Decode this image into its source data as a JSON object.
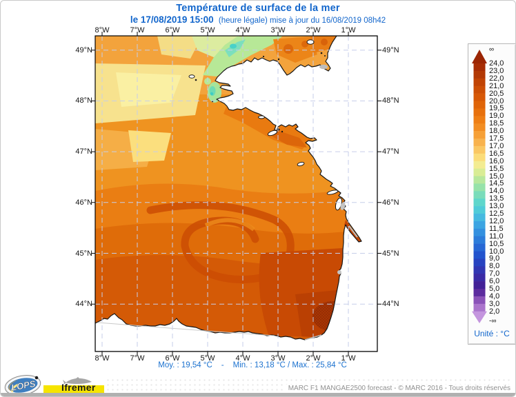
{
  "header": {
    "title": "Température de surface de la mer",
    "date_bold": "le 17/08/2019 15:00",
    "date_rest": "(heure légale) mise à jour du 16/08/2019 08h42"
  },
  "map": {
    "lon_labels": [
      "8°W",
      "7°W",
      "6°W",
      "5°W",
      "4°W",
      "3°W",
      "2°W",
      "1°W"
    ],
    "lat_labels": [
      "49°N",
      "48°N",
      "47°N",
      "46°N",
      "45°N",
      "44°N"
    ]
  },
  "scale": {
    "top_label": "∞",
    "bottom_label": "-∞",
    "unit": "Unité : °C",
    "boundaries": [
      "24,0",
      "23,0",
      "22,0",
      "21,0",
      "20,5",
      "20,0",
      "19,5",
      "19,0",
      "18,5",
      "18,0",
      "17,5",
      "17,0",
      "16,5",
      "16,0",
      "15,5",
      "15,0",
      "14,5",
      "14,0",
      "13,5",
      "13,0",
      "12,5",
      "12,0",
      "11,5",
      "11,0",
      "10,5",
      "10,0",
      "9,0",
      "8,0",
      "7,0",
      "6,0",
      "5,0",
      "4,0",
      "3,0",
      "2,0"
    ],
    "segment_colors": [
      "#9b2503",
      "#a72c04",
      "#b23804",
      "#c04304",
      "#cc4e05",
      "#d75806",
      "#df6408",
      "#e7700c",
      "#ee7e14",
      "#f28d22",
      "#f6a036",
      "#f8b24d",
      "#fac763",
      "#fbdc79",
      "#f3ec92",
      "#d9ec95",
      "#b7e79c",
      "#96e2a9",
      "#79dcba",
      "#5ed6cb",
      "#4fcbd8",
      "#45b9e0",
      "#3ba4e2",
      "#3390df",
      "#2c7cda",
      "#2767d4",
      "#2253cd",
      "#2743c0",
      "#3136b2",
      "#3a2aa5",
      "#422097",
      "#5b2b9e",
      "#8a52b8",
      "#aa74cc",
      "#c495de"
    ]
  },
  "stats": {
    "mean": "Moy. : 19,54 °C",
    "separator": "-",
    "min_max": "Min. : 13,18 °C / Max. : 25,84 °C"
  },
  "footer": {
    "credit": "MARC F1 MANGAE2500 forecast - © MARC 2016 - Tous droits réservés",
    "lops": "LOPS",
    "ifremer": "Ifremer"
  },
  "colors": {
    "accent_blue": "#1266cc",
    "grid": "#c6cde9",
    "sea_warm_max": "#a83504",
    "sea_cool_patch": "#49d1c9"
  }
}
